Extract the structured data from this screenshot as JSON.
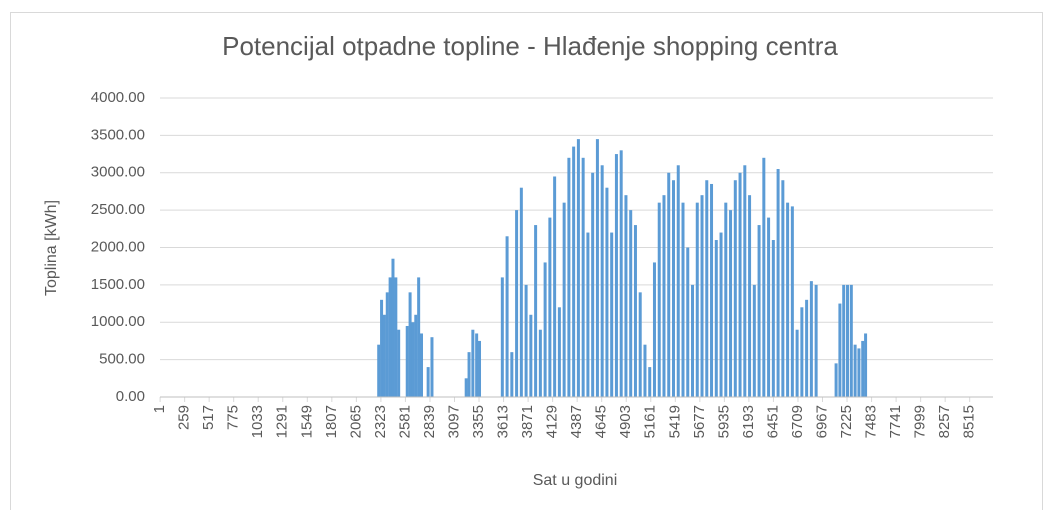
{
  "chart_data": {
    "type": "bar",
    "title": "Potencijal otpadne topline - Hlađenje shopping centra",
    "x_label": "Sat u godini",
    "y_label": "Toplina [kWh]",
    "color": "#5b9bd5",
    "grid": true,
    "x": [
      2300,
      2330,
      2360,
      2390,
      2420,
      2450,
      2480,
      2510,
      2600,
      2630,
      2660,
      2690,
      2720,
      2750,
      2820,
      2860,
      3220,
      3250,
      3290,
      3330,
      3360,
      3600,
      3650,
      3700,
      3750,
      3800,
      3850,
      3900,
      3950,
      4000,
      4050,
      4100,
      4150,
      4200,
      4250,
      4300,
      4350,
      4400,
      4450,
      4500,
      4550,
      4600,
      4650,
      4700,
      4750,
      4800,
      4850,
      4900,
      4950,
      5000,
      5050,
      5100,
      5150,
      5200,
      5250,
      5300,
      5350,
      5400,
      5450,
      5500,
      5550,
      5600,
      5650,
      5700,
      5750,
      5800,
      5850,
      5900,
      5950,
      6000,
      6050,
      6100,
      6150,
      6200,
      6250,
      6300,
      6350,
      6400,
      6450,
      6500,
      6550,
      6600,
      6650,
      6700,
      6750,
      6800,
      6850,
      6900,
      7110,
      7150,
      7190,
      7230,
      7270,
      7310,
      7350,
      7390,
      7420
    ],
    "values": [
      700,
      1300,
      1100,
      1400,
      1600,
      1850,
      1600,
      900,
      950,
      1400,
      1000,
      1100,
      1600,
      850,
      400,
      800,
      250,
      600,
      900,
      850,
      750,
      1600,
      2150,
      600,
      2500,
      2800,
      1500,
      1100,
      2300,
      900,
      1800,
      2400,
      2950,
      1200,
      2600,
      3200,
      3350,
      3450,
      3200,
      2200,
      3000,
      3450,
      3100,
      2800,
      2200,
      3250,
      3300,
      2700,
      2500,
      2300,
      1400,
      700,
      400,
      1800,
      2600,
      2700,
      3000,
      2900,
      3100,
      2600,
      2000,
      1500,
      2600,
      2700,
      2900,
      2850,
      2100,
      2200,
      2600,
      2500,
      2900,
      3000,
      3100,
      2700,
      1500,
      2300,
      3200,
      2400,
      2100,
      3050,
      2900,
      2600,
      2550,
      900,
      1200,
      1300,
      1550,
      1500,
      450,
      1250,
      1500,
      1500,
      1500,
      700,
      650,
      750,
      850
    ],
    "xlim": [
      0,
      8760
    ],
    "xticks": [
      1,
      259,
      517,
      775,
      1033,
      1291,
      1549,
      1807,
      2065,
      2323,
      2581,
      2839,
      3097,
      3355,
      3613,
      3871,
      4129,
      4387,
      4645,
      4903,
      5161,
      5419,
      5677,
      5935,
      6193,
      6451,
      6709,
      6967,
      7225,
      7483,
      7741,
      7999,
      8257,
      8515
    ],
    "ylim": [
      0,
      4000
    ],
    "yticks": [
      {
        "value": 0,
        "label": "0.00"
      },
      {
        "value": 500,
        "label": "500.00"
      },
      {
        "value": 1000,
        "label": "1000.00"
      },
      {
        "value": 1500,
        "label": "1500.00"
      },
      {
        "value": 2000,
        "label": "2000.00"
      },
      {
        "value": 2500,
        "label": "2500.00"
      },
      {
        "value": 3000,
        "label": "3000.00"
      },
      {
        "value": 3500,
        "label": "3500.00"
      },
      {
        "value": 4000,
        "label": "4000.00"
      }
    ]
  }
}
